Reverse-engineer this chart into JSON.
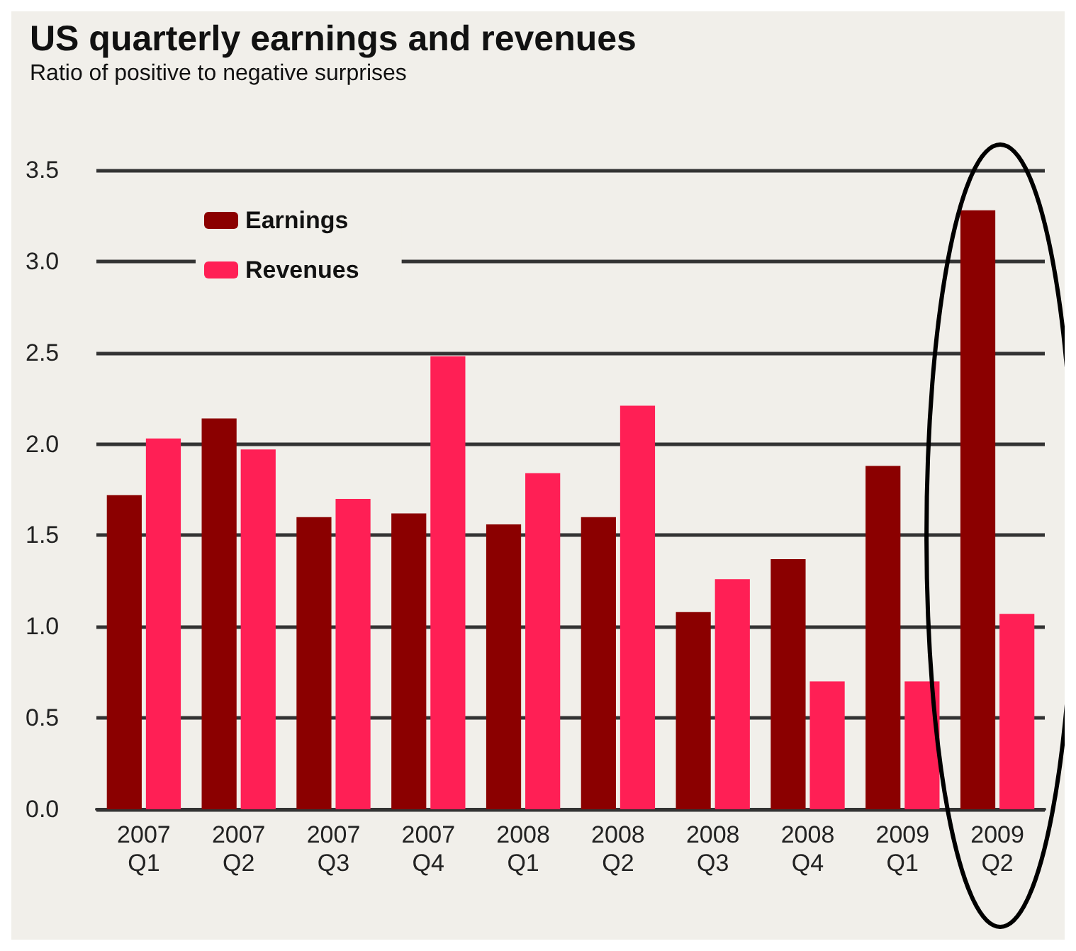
{
  "chart_data": {
    "type": "bar",
    "title": "US quarterly earnings and revenues",
    "subtitle": "Ratio of positive to negative surprises",
    "categories": [
      "2007 Q1",
      "2007 Q2",
      "2007 Q3",
      "2007 Q4",
      "2008 Q1",
      "2008 Q2",
      "2008 Q3",
      "2008 Q4",
      "2009 Q1",
      "2009 Q2"
    ],
    "series": [
      {
        "name": "Earnings",
        "color": "#8b0000",
        "values": [
          1.72,
          2.14,
          1.6,
          1.62,
          1.56,
          1.6,
          1.08,
          1.37,
          1.88,
          3.28
        ]
      },
      {
        "name": "Revenues",
        "color": "#ff1f55",
        "values": [
          2.03,
          1.97,
          1.7,
          2.48,
          1.84,
          2.21,
          1.26,
          0.7,
          0.7,
          1.07
        ]
      }
    ],
    "ylim": [
      0,
      3.5
    ],
    "yticks": [
      {
        "value": 0,
        "label": "0.0"
      },
      0.5,
      {
        "value": 1,
        "label": "1.0"
      },
      1.5,
      {
        "value": 2,
        "label": "2.0"
      },
      2.5,
      {
        "value": 3,
        "label": "3.0"
      },
      3.5
    ],
    "grid": "y",
    "legend": "top left"
  }
}
